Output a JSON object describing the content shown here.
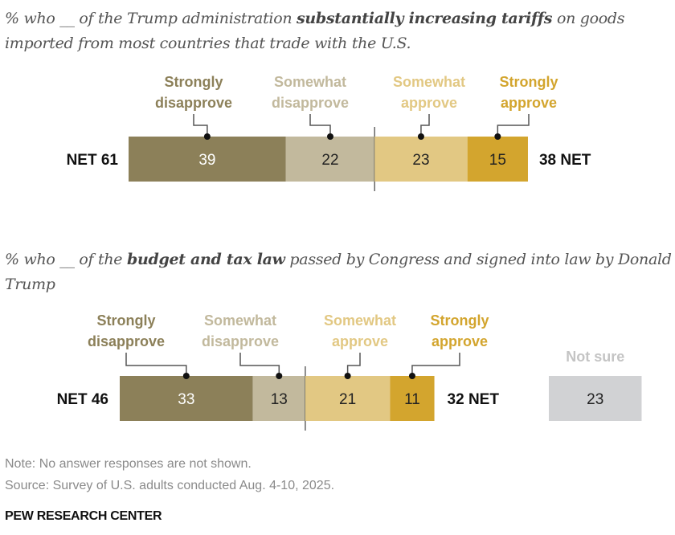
{
  "chart_data": [
    {
      "type": "bar",
      "orientation": "horizontal-stacked-diverging",
      "title_parts": [
        {
          "text": "% who __ of the Trump administration ",
          "bold": false
        },
        {
          "text": "substantially increasing tariffs",
          "bold": true
        },
        {
          "text": " on goods imported from most countries that trade with the U.S.",
          "bold": false
        }
      ],
      "categories": [
        "Strongly disapprove",
        "Somewhat disapprove",
        "Somewhat approve",
        "Strongly approve"
      ],
      "values": [
        39,
        22,
        23,
        15
      ],
      "colors": [
        "#8c8059",
        "#c2b99d",
        "#e2c883",
        "#d3a52e"
      ],
      "label_text_colors": [
        "#8c8059",
        "#c2b99d",
        "#e2c883",
        "#d3a52e"
      ],
      "value_text_colors": [
        "#ffffff",
        "#222222",
        "#222222",
        "#222222"
      ],
      "net_left": {
        "text": "NET 61",
        "value": 61
      },
      "net_right": {
        "text": "38  NET",
        "value": 38
      }
    },
    {
      "type": "bar",
      "orientation": "horizontal-stacked-diverging",
      "title_parts": [
        {
          "text": "% who __ of the ",
          "bold": false
        },
        {
          "text": "budget and tax law",
          "bold": true
        },
        {
          "text": " passed by Congress and signed into law by Donald Trump",
          "bold": false
        }
      ],
      "categories": [
        "Strongly disapprove",
        "Somewhat disapprove",
        "Somewhat approve",
        "Strongly approve"
      ],
      "values": [
        33,
        13,
        21,
        11
      ],
      "colors": [
        "#8c8059",
        "#c2b99d",
        "#e2c883",
        "#d3a52e"
      ],
      "label_text_colors": [
        "#8c8059",
        "#c2b99d",
        "#e2c883",
        "#d3a52e"
      ],
      "value_text_colors": [
        "#ffffff",
        "#222222",
        "#222222",
        "#222222"
      ],
      "net_left": {
        "text": "NET  46",
        "value": 46
      },
      "net_right": {
        "text": "32  NET",
        "value": 32
      },
      "not_sure": {
        "label": "Not sure",
        "value": 23,
        "color": "#d1d2d4",
        "label_color": "#c4c4c4"
      }
    }
  ],
  "footer": {
    "note": "Note: No answer responses are not shown.",
    "source": "Source: Survey of U.S. adults conducted Aug. 4-10, 2025.",
    "brand": "PEW RESEARCH CENTER"
  }
}
